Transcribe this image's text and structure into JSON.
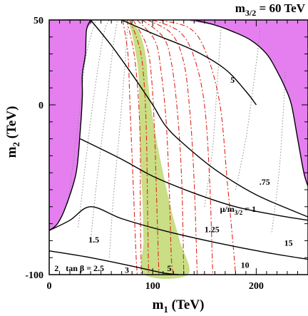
{
  "chart_data": {
    "type": "contour",
    "title": "m",
    "title_sub": "3/2",
    "title_rest": " = 60 TeV",
    "xlabel": "m",
    "xlabel_sub": "1",
    "xlabel_rest": " (TeV)",
    "ylabel": "m",
    "ylabel_sub": "2",
    "ylabel_rest": " (TeV)",
    "xlim": [
      0,
      250
    ],
    "ylim": [
      -100,
      50
    ],
    "xticks": [
      0,
      100,
      200
    ],
    "yticks": [
      -100,
      0,
      50
    ],
    "xticks_minor_step": 10,
    "yticks_minor_step": 10,
    "colors": {
      "excluded_region": "#e57ff0",
      "favored_band": "#c9de85",
      "red_contours": "#e0251c",
      "gray_contours": "#8c8c8c",
      "black_contours": "#000000"
    },
    "regions": [
      {
        "fill": "#e57ff0",
        "points": [
          [
            0,
            50
          ],
          [
            40,
            50
          ],
          [
            36,
            44
          ],
          [
            35,
            30
          ],
          [
            32,
            18
          ],
          [
            32,
            5
          ],
          [
            30,
            -15
          ],
          [
            26,
            -40
          ],
          [
            16,
            -60
          ],
          [
            8,
            -70
          ],
          [
            0,
            -74
          ]
        ]
      },
      {
        "fill": "#e57ff0",
        "points": [
          [
            250,
            50
          ],
          [
            140,
            50
          ],
          [
            160,
            47
          ],
          [
            178,
            43
          ],
          [
            195,
            38
          ],
          [
            210,
            30
          ],
          [
            220,
            20
          ],
          [
            228,
            10
          ],
          [
            234,
            0
          ],
          [
            240,
            -20
          ],
          [
            246,
            -40
          ],
          [
            250,
            -48
          ]
        ]
      },
      {
        "fill": "#c9de85",
        "points": [
          [
            76,
            50
          ],
          [
            86,
            44
          ],
          [
            93,
            30
          ],
          [
            96,
            10
          ],
          [
            102,
            -15
          ],
          [
            110,
            -40
          ],
          [
            118,
            -62
          ],
          [
            126,
            -80
          ],
          [
            134,
            -100
          ],
          [
            92,
            -100
          ],
          [
            91,
            -80
          ],
          [
            90,
            -55
          ],
          [
            88,
            -30
          ],
          [
            87,
            -5
          ],
          [
            86,
            20
          ],
          [
            80,
            42
          ]
        ]
      }
    ],
    "black_contours": [
      {
        "label": "",
        "points": [
          [
            40,
            50
          ],
          [
            36,
            44
          ],
          [
            35,
            30
          ],
          [
            32,
            18
          ],
          [
            32,
            5
          ],
          [
            30,
            -15
          ],
          [
            26,
            -40
          ],
          [
            16,
            -60
          ],
          [
            8,
            -70
          ],
          [
            0,
            -74
          ]
        ]
      },
      {
        "label": "",
        "points": [
          [
            140,
            50
          ],
          [
            160,
            47
          ],
          [
            178,
            43
          ],
          [
            195,
            38
          ],
          [
            210,
            30
          ],
          [
            220,
            20
          ],
          [
            228,
            10
          ],
          [
            234,
            0
          ],
          [
            240,
            -20
          ],
          [
            246,
            -40
          ],
          [
            250,
            -48
          ]
        ]
      },
      {
        "label": "5",
        "points": [
          [
            70,
            50
          ],
          [
            100,
            42
          ],
          [
            140,
            32
          ],
          [
            170,
            21
          ],
          [
            190,
            8
          ],
          [
            200,
            0
          ]
        ]
      },
      {
        "label": "",
        "points": [
          [
            40,
            50
          ],
          [
            60,
            35
          ],
          [
            80,
            18
          ],
          [
            100,
            0
          ],
          [
            112,
            -12
          ],
          [
            128,
            -22
          ],
          [
            160,
            -38
          ],
          [
            200,
            -53
          ],
          [
            250,
            -66
          ]
        ]
      },
      {
        "label": ".75",
        "points": [
          [
            30,
            -20
          ],
          [
            70,
            -32
          ],
          [
            100,
            -42
          ],
          [
            140,
            -52
          ],
          [
            180,
            -60
          ],
          [
            220,
            -65
          ],
          [
            250,
            -68
          ]
        ]
      },
      {
        "label": "μ/m",
        "label_sub": "3/2",
        "label_rest": " = 1",
        "points": [
          [
            0,
            -74
          ],
          [
            20,
            -68
          ],
          [
            40,
            -60
          ],
          [
            70,
            -67
          ],
          [
            110,
            -74
          ],
          [
            160,
            -81
          ],
          [
            210,
            -87
          ],
          [
            250,
            -91
          ]
        ]
      },
      {
        "label": "1.25",
        "points": [
          [
            0,
            -86
          ],
          [
            40,
            -90
          ],
          [
            80,
            -95
          ],
          [
            110,
            -99
          ],
          [
            125,
            -100
          ]
        ]
      }
    ],
    "red_contours": [
      {
        "label": "3",
        "points": [
          [
            71,
            50
          ],
          [
            76,
            30
          ],
          [
            78,
            0
          ],
          [
            80,
            -30
          ],
          [
            82,
            -60
          ],
          [
            84,
            -90
          ],
          [
            85,
            -100
          ]
        ]
      },
      {
        "label": "",
        "points": [
          [
            75,
            50
          ],
          [
            82,
            30
          ],
          [
            86,
            5
          ],
          [
            88,
            -25
          ],
          [
            88,
            -60
          ],
          [
            89,
            -100
          ]
        ]
      },
      {
        "label": "",
        "points": [
          [
            78,
            50
          ],
          [
            88,
            32
          ],
          [
            92,
            10
          ],
          [
            94,
            -20
          ],
          [
            95,
            -60
          ],
          [
            96,
            -100
          ]
        ]
      },
      {
        "label": "",
        "points": [
          [
            81,
            50
          ],
          [
            94,
            35
          ],
          [
            99,
            15
          ],
          [
            102,
            -20
          ],
          [
            104,
            -60
          ],
          [
            106,
            -100
          ]
        ]
      },
      {
        "label": "5",
        "points": [
          [
            85,
            50
          ],
          [
            102,
            38
          ],
          [
            108,
            20
          ],
          [
            113,
            -10
          ],
          [
            116,
            -50
          ],
          [
            118,
            -90
          ],
          [
            120,
            -100
          ]
        ]
      },
      {
        "label": "",
        "points": [
          [
            90,
            50
          ],
          [
            110,
            40
          ],
          [
            118,
            25
          ],
          [
            124,
            -5
          ],
          [
            128,
            -45
          ],
          [
            130,
            -100
          ]
        ]
      },
      {
        "label": "",
        "points": [
          [
            95,
            50
          ],
          [
            118,
            42
          ],
          [
            130,
            25
          ],
          [
            136,
            -5
          ],
          [
            140,
            -45
          ],
          [
            143,
            -100
          ]
        ]
      },
      {
        "label": "",
        "points": [
          [
            100,
            50
          ],
          [
            126,
            43
          ],
          [
            140,
            28
          ],
          [
            150,
            0
          ],
          [
            155,
            -45
          ],
          [
            158,
            -100
          ]
        ]
      },
      {
        "label": "10",
        "points": [
          [
            106,
            50
          ],
          [
            136,
            45
          ],
          [
            152,
            30
          ],
          [
            165,
            0
          ],
          [
            172,
            -45
          ],
          [
            178,
            -85
          ],
          [
            180,
            -100
          ]
        ]
      }
    ],
    "gray_contours": [
      {
        "label": "",
        "points": [
          [
            18,
            -58
          ],
          [
            24,
            -30
          ],
          [
            30,
            0
          ],
          [
            36,
            30
          ],
          [
            45,
            50
          ]
        ]
      },
      {
        "label": "",
        "points": [
          [
            28,
            -72
          ],
          [
            34,
            -40
          ],
          [
            42,
            0
          ],
          [
            52,
            40
          ],
          [
            58,
            50
          ]
        ]
      },
      {
        "label": "",
        "points": [
          [
            40,
            -80
          ],
          [
            46,
            -45
          ],
          [
            54,
            -5
          ],
          [
            62,
            35
          ],
          [
            66,
            50
          ]
        ]
      },
      {
        "label": "",
        "points": [
          [
            58,
            -90
          ],
          [
            62,
            -55
          ],
          [
            68,
            -15
          ],
          [
            74,
            30
          ],
          [
            76,
            50
          ]
        ]
      },
      {
        "label": "",
        "points": [
          [
            150,
            -60
          ],
          [
            158,
            -25
          ],
          [
            162,
            10
          ],
          [
            166,
            45
          ]
        ]
      },
      {
        "label": "15",
        "points": [
          [
            180,
            -50
          ],
          [
            190,
            -20
          ],
          [
            198,
            15
          ],
          [
            204,
            45
          ]
        ]
      },
      {
        "label": "",
        "points": [
          [
            215,
            -75
          ],
          [
            222,
            -40
          ],
          [
            226,
            -5
          ],
          [
            228,
            20
          ]
        ]
      }
    ],
    "annotations": [
      {
        "text": "5",
        "x": 175,
        "y": 13
      },
      {
        "text": ".75",
        "x": 203,
        "y": -47
      },
      {
        "text": "μ/m",
        "sub": "3/2",
        "rest": " = 1",
        "x": 165,
        "y": -63
      },
      {
        "text": "1.25",
        "x": 150,
        "y": -75
      },
      {
        "text": "15",
        "x": 227,
        "y": -83
      },
      {
        "text": "1.5",
        "x": 38,
        "y": -81
      },
      {
        "text": "10",
        "x": 185,
        "y": -96
      },
      {
        "text": "2",
        "x": 5,
        "y": -98
      },
      {
        "text": "tan β = 2.5",
        "x": 16,
        "y": -98
      },
      {
        "text": "3",
        "x": 73,
        "y": -99
      },
      {
        "text": "5",
        "x": 114,
        "y": -98
      }
    ]
  }
}
